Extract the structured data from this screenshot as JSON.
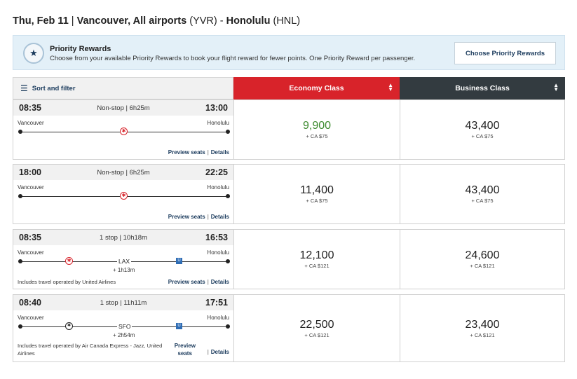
{
  "header": {
    "date": "Thu, Feb 11",
    "separator": " | ",
    "origin": "Vancouver, All airports",
    "origin_code": "(YVR)",
    "dash": " - ",
    "destination": "Honolulu",
    "destination_code": "(HNL)"
  },
  "rewards_banner": {
    "title": "Priority Rewards",
    "description": "Choose from your available Priority Rewards to book your flight reward for fewer points. One Priority Reward per passenger.",
    "button_label": "Choose Priority Rewards",
    "icon": "star-badge-icon"
  },
  "sort_filter": {
    "label": "Sort and filter",
    "icon": "filter-lines-icon"
  },
  "columns": {
    "economy": {
      "label": "Economy Class",
      "color": "#d8232a"
    },
    "business": {
      "label": "Business Class",
      "color": "#333b40"
    },
    "sort_icon": "sort-arrows-icon"
  },
  "flights": [
    {
      "depart": "08:35",
      "arrive": "13:00",
      "duration": "Non-stop | 6h25m",
      "from": "Vancouver",
      "to": "Honolulu",
      "stop_code": "",
      "layover": "",
      "operated_by": "",
      "preview_label": "Preview seats",
      "details_label": "Details",
      "economy_points": "9,900",
      "economy_tax": "+ CA $75",
      "business_points": "43,400",
      "business_tax": "+ CA $75"
    },
    {
      "depart": "18:00",
      "arrive": "22:25",
      "duration": "Non-stop | 6h25m",
      "from": "Vancouver",
      "to": "Honolulu",
      "stop_code": "",
      "layover": "",
      "operated_by": "",
      "preview_label": "Preview seats",
      "details_label": "Details",
      "economy_points": "11,400",
      "economy_tax": "+ CA $75",
      "business_points": "43,400",
      "business_tax": "+ CA $75"
    },
    {
      "depart": "08:35",
      "arrive": "16:53",
      "duration": "1 stop | 10h18m",
      "from": "Vancouver",
      "to": "Honolulu",
      "stop_code": "LAX",
      "layover": "+ 1h13m",
      "operated_by": "Includes travel operated by United Airlines",
      "preview_label": "Preview seats",
      "details_label": "Details",
      "economy_points": "12,100",
      "economy_tax": "+ CA $121",
      "business_points": "24,600",
      "business_tax": "+ CA $121"
    },
    {
      "depart": "08:40",
      "arrive": "17:51",
      "duration": "1 stop | 11h11m",
      "from": "Vancouver",
      "to": "Honolulu",
      "stop_code": "SFO",
      "layover": "+ 2h54m",
      "operated_by": "Includes travel operated by Air Canada Express - Jazz, United Airlines",
      "preview_label": "Preview seats",
      "details_label": "Details",
      "economy_points": "22,500",
      "economy_tax": "+ CA $121",
      "business_points": "23,400",
      "business_tax": "+ CA $121"
    }
  ],
  "colors": {
    "lowest_price": "#3c8a2e",
    "link": "#1a3a5c",
    "air_canada_red": "#d8232a",
    "united_blue": "#2f6db5"
  }
}
